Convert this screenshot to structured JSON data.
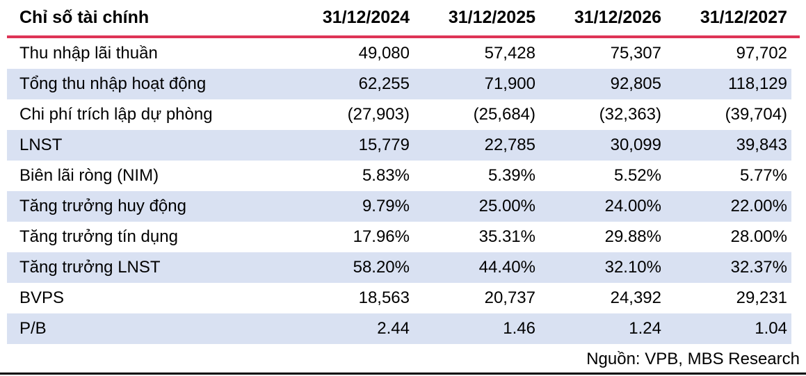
{
  "table": {
    "header": {
      "label": "Chỉ số tài chính",
      "columns": [
        "31/12/2024",
        "31/12/2025",
        "31/12/2026",
        "31/12/2027"
      ]
    },
    "rows": [
      {
        "label": "Thu nhập lãi thuần",
        "values": [
          "49,080",
          "57,428",
          "75,307",
          "97,702"
        ]
      },
      {
        "label": "Tổng thu nhập hoạt động",
        "values": [
          "62,255",
          "71,900",
          "92,805",
          "118,129"
        ]
      },
      {
        "label": "Chi phí trích lập dự phòng",
        "values": [
          "(27,903)",
          "(25,684)",
          "(32,363)",
          "(39,704)"
        ]
      },
      {
        "label": "LNST",
        "values": [
          "15,779",
          "22,785",
          "30,099",
          "39,843"
        ]
      },
      {
        "label": "Biên lãi ròng (NIM)",
        "values": [
          "5.83%",
          "5.39%",
          "5.52%",
          "5.77%"
        ]
      },
      {
        "label": "Tăng trưởng huy động",
        "values": [
          "9.79%",
          "25.00%",
          "24.00%",
          "22.00%"
        ]
      },
      {
        "label": "Tăng trưởng tín dụng",
        "values": [
          "17.96%",
          "35.31%",
          "29.88%",
          "28.00%"
        ]
      },
      {
        "label": "Tăng trưởng LNST",
        "values": [
          "58.20%",
          "44.40%",
          "32.10%",
          "32.37%"
        ]
      },
      {
        "label": "BVPS",
        "values": [
          "18,563",
          "20,737",
          "24,392",
          "29,231"
        ]
      },
      {
        "label": "P/B",
        "values": [
          "2.44",
          "1.46",
          "1.24",
          "1.04"
        ]
      }
    ],
    "source": "Nguồn: VPB, MBS Research"
  },
  "colors": {
    "header_rule": "#DE3456",
    "stripe": "#D9E1F2",
    "bottom_rule": "#000000"
  }
}
